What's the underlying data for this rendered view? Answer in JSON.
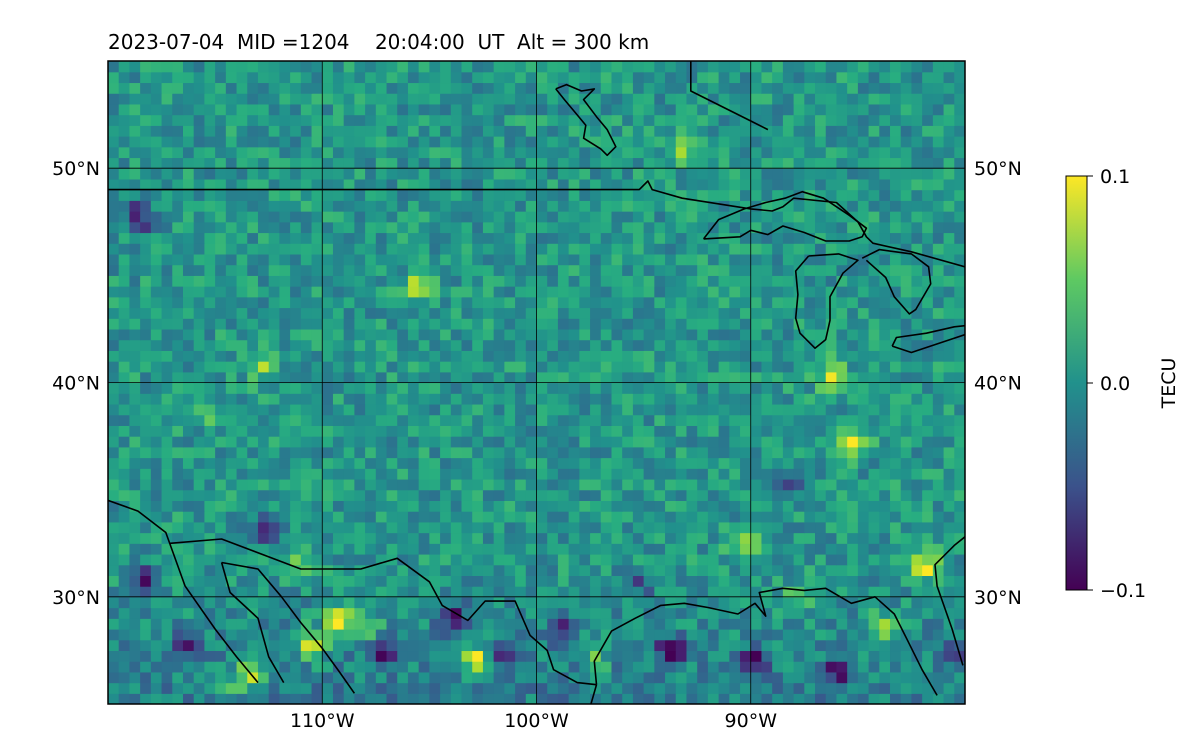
{
  "title": "2023-07-04  MID =1204    20:04:00  UT  Alt = 300 km",
  "map": {
    "lon_range": [
      -120,
      -80
    ],
    "lat_range": [
      25,
      55
    ],
    "lon_ticks": [
      -110,
      -100,
      -90
    ],
    "lon_tick_labels": [
      "110°W",
      "100°W",
      "90°W"
    ],
    "lat_ticks": [
      30,
      40,
      50
    ],
    "lat_tick_labels": [
      "30°N",
      "40°N",
      "50°N"
    ],
    "grid": true,
    "field": "TEC perturbation"
  },
  "colorbar": {
    "label": "TECU",
    "min": -0.1,
    "max": 0.1,
    "tick_labels": [
      "0.1",
      "0.0",
      "−0.1"
    ],
    "colormap": "viridis",
    "colors": [
      "#440154",
      "#3b528b",
      "#21918c",
      "#5ec962",
      "#fde725"
    ]
  },
  "features": {
    "hotspots": [
      {
        "lon": -110.8,
        "lat": 27.5,
        "value": 0.1
      },
      {
        "lon": -109.5,
        "lat": 28.6,
        "value": 0.09
      },
      {
        "lon": -108.3,
        "lat": 28.2,
        "value": 0.07
      },
      {
        "lon": -113.5,
        "lat": 26.2,
        "value": 0.09
      },
      {
        "lon": -114.8,
        "lat": 25.5,
        "value": 0.06
      },
      {
        "lon": -103.0,
        "lat": 26.8,
        "value": 0.1
      },
      {
        "lon": -97.5,
        "lat": 27.0,
        "value": 0.05
      },
      {
        "lon": -84.2,
        "lat": 28.3,
        "value": 0.08
      },
      {
        "lon": -86.5,
        "lat": 40.1,
        "value": 0.07
      },
      {
        "lon": -85.5,
        "lat": 36.9,
        "value": 0.08
      },
      {
        "lon": -88.0,
        "lat": 29.7,
        "value": 0.06
      },
      {
        "lon": -82.2,
        "lat": 31.2,
        "value": 0.09
      },
      {
        "lon": -90.5,
        "lat": 32.0,
        "value": 0.06
      },
      {
        "lon": -111.5,
        "lat": 31.5,
        "value": 0.06
      },
      {
        "lon": -116.0,
        "lat": 38.5,
        "value": 0.05
      },
      {
        "lon": -105.8,
        "lat": 44.3,
        "value": 0.06
      },
      {
        "lon": -93.5,
        "lat": 50.6,
        "value": 0.05
      },
      {
        "lon": -113.0,
        "lat": 40.5,
        "value": 0.05
      }
    ],
    "lows": [
      {
        "lon": -104.2,
        "lat": 28.8,
        "value": -0.1
      },
      {
        "lon": -99.0,
        "lat": 28.3,
        "value": -0.08
      },
      {
        "lon": -94.0,
        "lat": 27.3,
        "value": -0.1
      },
      {
        "lon": -90.0,
        "lat": 26.8,
        "value": -0.09
      },
      {
        "lon": -86.2,
        "lat": 26.2,
        "value": -0.09
      },
      {
        "lon": -101.8,
        "lat": 27.2,
        "value": -0.07
      },
      {
        "lon": -107.5,
        "lat": 27.2,
        "value": -0.09
      },
      {
        "lon": -116.5,
        "lat": 27.5,
        "value": -0.09
      },
      {
        "lon": -118.6,
        "lat": 30.7,
        "value": -0.08
      },
      {
        "lon": -112.8,
        "lat": 32.8,
        "value": -0.08
      },
      {
        "lon": -118.8,
        "lat": 47.5,
        "value": -0.09
      },
      {
        "lon": -88.5,
        "lat": 34.8,
        "value": -0.06
      },
      {
        "lon": -81.0,
        "lat": 27.2,
        "value": -0.06
      },
      {
        "lon": -95.5,
        "lat": 30.4,
        "value": -0.05
      }
    ]
  },
  "outlines": {
    "us_canada_border": [
      [
        -120,
        49
      ],
      [
        -115,
        49
      ],
      [
        -110,
        49
      ],
      [
        -105,
        49
      ],
      [
        -100,
        49
      ],
      [
        -95.2,
        49
      ],
      [
        -94.8,
        49.4
      ],
      [
        -94.6,
        49
      ],
      [
        -93.2,
        48.6
      ],
      [
        -90,
        48.1
      ],
      [
        -89,
        48
      ],
      [
        -88.5,
        48.2
      ],
      [
        -88,
        48.6
      ],
      [
        -86,
        48.4
      ],
      [
        -85,
        47.5
      ],
      [
        -84.6,
        46.8
      ],
      [
        -84.3,
        46.5
      ],
      [
        -82.5,
        46.1
      ],
      [
        -80,
        45.4
      ]
    ],
    "lake_superior": [
      [
        -92.2,
        46.7
      ],
      [
        -90.5,
        46.8
      ],
      [
        -90,
        47.1
      ],
      [
        -89.2,
        46.9
      ],
      [
        -88.5,
        47.3
      ],
      [
        -87.5,
        47
      ],
      [
        -86.5,
        46.6
      ],
      [
        -85.4,
        46.6
      ],
      [
        -84.8,
        46.8
      ],
      [
        -84.6,
        47.2
      ],
      [
        -85.4,
        47.8
      ],
      [
        -86.6,
        48.6
      ],
      [
        -87.6,
        48.9
      ],
      [
        -88.4,
        48.6
      ],
      [
        -89.3,
        48.4
      ],
      [
        -90.3,
        48.1
      ],
      [
        -91.5,
        47.6
      ],
      [
        -92.2,
        46.7
      ]
    ],
    "lake_michigan": [
      [
        -87.3,
        45.9
      ],
      [
        -87.9,
        45.2
      ],
      [
        -87.8,
        44.1
      ],
      [
        -87.9,
        43
      ],
      [
        -87.7,
        42.3
      ],
      [
        -87,
        41.6
      ],
      [
        -86.5,
        42
      ],
      [
        -86.3,
        42.9
      ],
      [
        -86.3,
        44
      ],
      [
        -85.7,
        45.1
      ],
      [
        -85,
        45.7
      ],
      [
        -85.9,
        46
      ],
      [
        -87.3,
        45.9
      ]
    ],
    "lake_huron": [
      [
        -84.8,
        45.8
      ],
      [
        -84,
        46.2
      ],
      [
        -82.5,
        46
      ],
      [
        -81.7,
        45.4
      ],
      [
        -81.6,
        44.6
      ],
      [
        -82.3,
        43.4
      ],
      [
        -82.6,
        43.2
      ],
      [
        -83.3,
        44
      ],
      [
        -83.7,
        44.9
      ],
      [
        -84.6,
        45.7
      ]
    ],
    "lake_erie": [
      [
        -83.4,
        41.7
      ],
      [
        -82.5,
        41.4
      ],
      [
        -81,
        41.9
      ],
      [
        -79.8,
        42.3
      ],
      [
        -79.5,
        42.7
      ],
      [
        -80.5,
        42.6
      ],
      [
        -81.8,
        42.3
      ],
      [
        -83.2,
        42.1
      ],
      [
        -83.4,
        41.7
      ]
    ],
    "hudson_bay_coast": [
      [
        -92.8,
        55
      ],
      [
        -92.8,
        53.6
      ],
      [
        -91.4,
        52.9
      ],
      [
        -90,
        52.2
      ],
      [
        -89.2,
        51.8
      ]
    ],
    "lake_winnipeg": [
      [
        -99.1,
        53.7
      ],
      [
        -98.6,
        53.9
      ],
      [
        -97.9,
        53.6
      ],
      [
        -97.3,
        53.7
      ],
      [
        -97.8,
        53.2
      ],
      [
        -97.2,
        52.4
      ],
      [
        -96.7,
        51.8
      ],
      [
        -96.3,
        51
      ],
      [
        -96.7,
        50.6
      ],
      [
        -97,
        50.9
      ],
      [
        -97.8,
        51.4
      ],
      [
        -97.7,
        52
      ],
      [
        -98.2,
        52.6
      ],
      [
        -98.7,
        53.2
      ],
      [
        -99.1,
        53.7
      ]
    ],
    "us_mexico_border": [
      [
        -117.1,
        32.5
      ],
      [
        -114.7,
        32.7
      ],
      [
        -111,
        31.3
      ],
      [
        -108.2,
        31.3
      ],
      [
        -106.5,
        31.8
      ],
      [
        -105,
        30.7
      ],
      [
        -104.4,
        29.6
      ],
      [
        -103.2,
        28.9
      ],
      [
        -102.4,
        29.8
      ],
      [
        -101,
        29.8
      ],
      [
        -100.3,
        28.2
      ],
      [
        -99.5,
        27.5
      ],
      [
        -99.2,
        26.6
      ],
      [
        -98.1,
        26.0
      ],
      [
        -97.2,
        25.9
      ]
    ],
    "pacific_coast": [
      [
        -120,
        34.5
      ],
      [
        -118.6,
        34
      ],
      [
        -117.3,
        33
      ],
      [
        -116.4,
        30.5
      ],
      [
        -115,
        28.5
      ],
      [
        -114,
        27.2
      ],
      [
        -113,
        26
      ]
    ],
    "gulf_california_west": [
      [
        -114.7,
        31.6
      ],
      [
        -114.3,
        30.2
      ],
      [
        -113,
        29
      ],
      [
        -112.5,
        27.2
      ],
      [
        -111.8,
        26
      ]
    ],
    "gulf_california_east": [
      [
        -114.7,
        31.6
      ],
      [
        -113,
        31.3
      ],
      [
        -111.9,
        30
      ],
      [
        -111,
        28.8
      ],
      [
        -110,
        27.6
      ],
      [
        -109.2,
        26.5
      ],
      [
        -108.5,
        25.5
      ]
    ],
    "mexico_gulf_coast": [
      [
        -97.2,
        25.9
      ],
      [
        -97.6,
        24.5
      ],
      [
        -98,
        22.5
      ]
    ],
    "texas_gulf_coast": [
      [
        -97.2,
        25.9
      ],
      [
        -97.3,
        27
      ],
      [
        -96.5,
        28.4
      ],
      [
        -95.4,
        29
      ],
      [
        -94.2,
        29.6
      ],
      [
        -93.1,
        29.7
      ],
      [
        -92,
        29.5
      ],
      [
        -90.6,
        29.2
      ],
      [
        -89.8,
        29.7
      ],
      [
        -89.3,
        29.1
      ],
      [
        -89.6,
        30.2
      ],
      [
        -88.5,
        30.4
      ],
      [
        -87.5,
        30.3
      ],
      [
        -86.5,
        30.4
      ],
      [
        -85.3,
        29.7
      ],
      [
        -84.2,
        30
      ],
      [
        -83.3,
        29.2
      ],
      [
        -82.7,
        28
      ],
      [
        -82,
        26.6
      ],
      [
        -81.3,
        25.4
      ]
    ],
    "atlantic_coast": [
      [
        -80.1,
        26.8
      ],
      [
        -80.6,
        28.5
      ],
      [
        -81.3,
        30.5
      ],
      [
        -81.4,
        31.5
      ],
      [
        -80.5,
        32.4
      ],
      [
        -80,
        32.8
      ]
    ]
  }
}
